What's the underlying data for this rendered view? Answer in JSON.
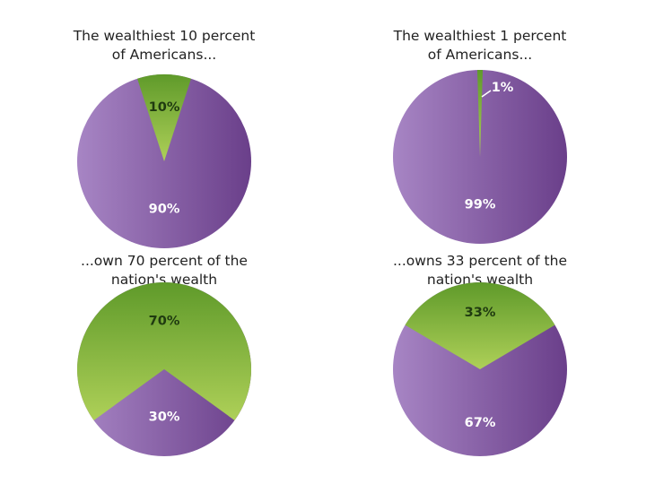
{
  "colors": {
    "purple_light": "#a785c4",
    "purple_dark": "#6a3f8a",
    "green_dark": "#5f9a2a",
    "green_light": "#aed058",
    "label_on_purple": "#ffffff",
    "label_on_green": "#1f3a10",
    "background": "#ffffff"
  },
  "chart_data": [
    {
      "type": "pie",
      "title_lines": [
        "The wealthiest 10 percent",
        "of Americans..."
      ],
      "slices": [
        {
          "label": "10%",
          "value": 10,
          "color_key": "green"
        },
        {
          "label": "90%",
          "value": 90,
          "color_key": "purple"
        }
      ]
    },
    {
      "type": "pie",
      "title_lines": [
        "The wealthiest 1 percent",
        "of Americans..."
      ],
      "slices": [
        {
          "label": "1%",
          "value": 1,
          "color_key": "green"
        },
        {
          "label": "99%",
          "value": 99,
          "color_key": "purple"
        }
      ]
    },
    {
      "type": "pie",
      "title_lines": [
        "...own 70 percent of the",
        "nation's wealth"
      ],
      "slices": [
        {
          "label": "70%",
          "value": 70,
          "color_key": "green"
        },
        {
          "label": "30%",
          "value": 30,
          "color_key": "purple"
        }
      ]
    },
    {
      "type": "pie",
      "title_lines": [
        "...owns 33 percent of the",
        "nation's wealth"
      ],
      "slices": [
        {
          "label": "33%",
          "value": 33,
          "color_key": "green"
        },
        {
          "label": "67%",
          "value": 67,
          "color_key": "purple"
        }
      ]
    }
  ]
}
